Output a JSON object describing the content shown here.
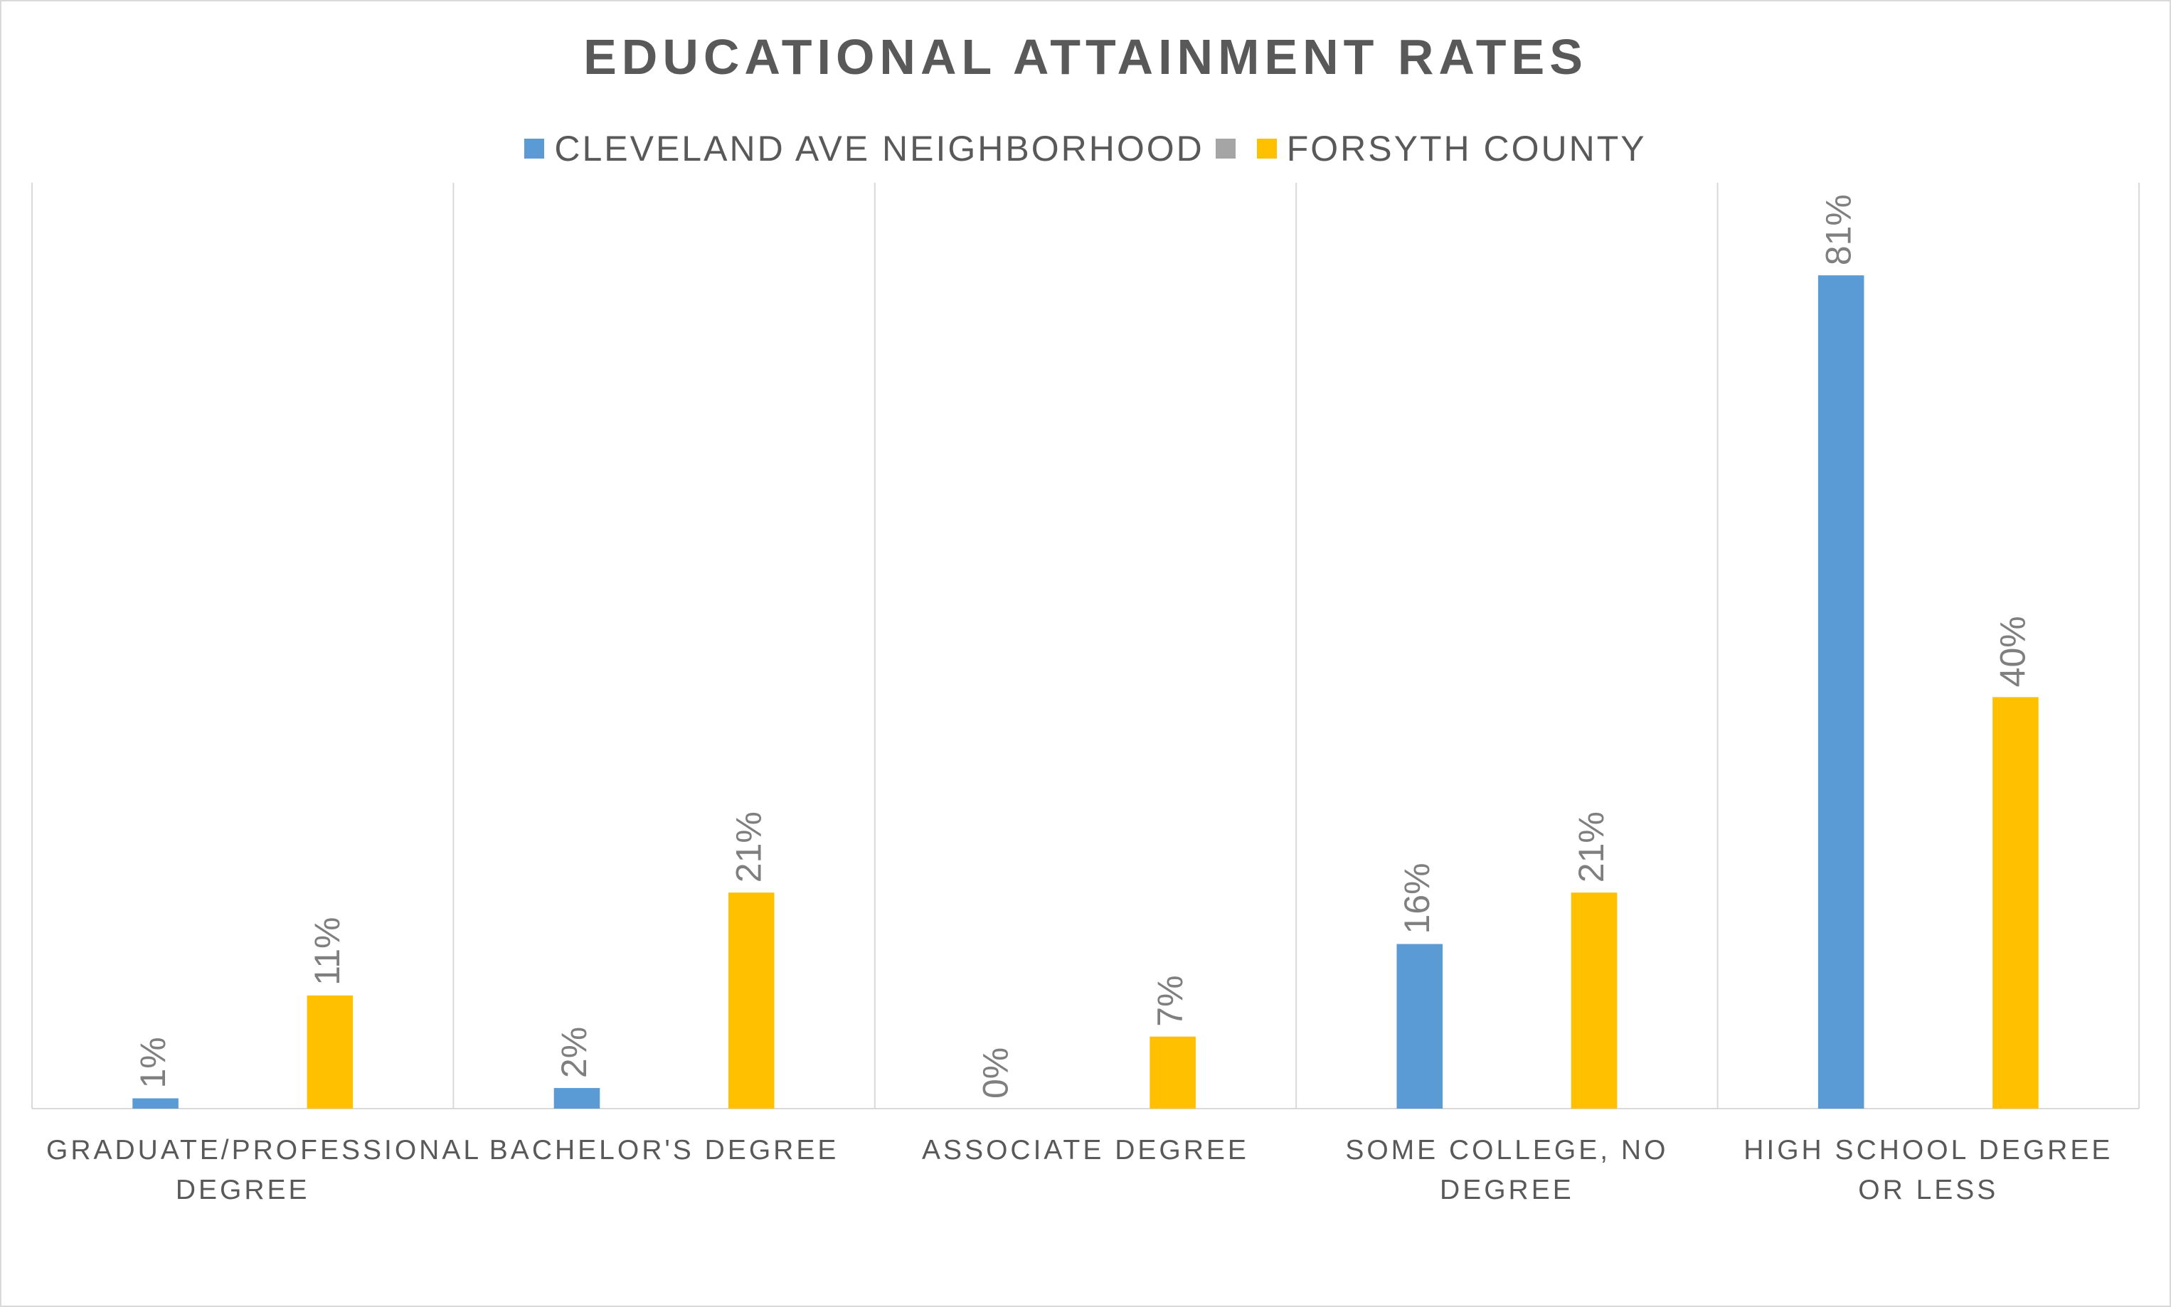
{
  "chart_data": {
    "type": "bar",
    "title": "EDUCATIONAL ATTAINMENT RATES",
    "categories": [
      "GRADUATE/PROFESSIONAL DEGREE",
      "BACHELOR'S DEGREE",
      "ASSOCIATE DEGREE",
      "SOME COLLEGE, NO DEGREE",
      "HIGH SCHOOL DEGREE OR LESS"
    ],
    "series": [
      {
        "name": "CLEVELAND AVE NEIGHBORHOOD",
        "color": "#5b9bd5",
        "values": [
          1,
          2,
          0,
          16,
          81
        ],
        "value_labels": [
          "1%",
          "2%",
          "0%",
          "16%",
          "81%"
        ]
      },
      {
        "color": "#a5a5a5",
        "values": [
          null,
          null,
          null,
          null,
          null
        ]
      },
      {
        "name": "FORSYTH COUNTY",
        "color": "#ffc000",
        "values": [
          11,
          21,
          7,
          21,
          40
        ],
        "value_labels": [
          "11%",
          "21%",
          "7%",
          "21%",
          "40%"
        ]
      }
    ],
    "ylim": [
      0,
      90
    ],
    "legend": "top"
  }
}
